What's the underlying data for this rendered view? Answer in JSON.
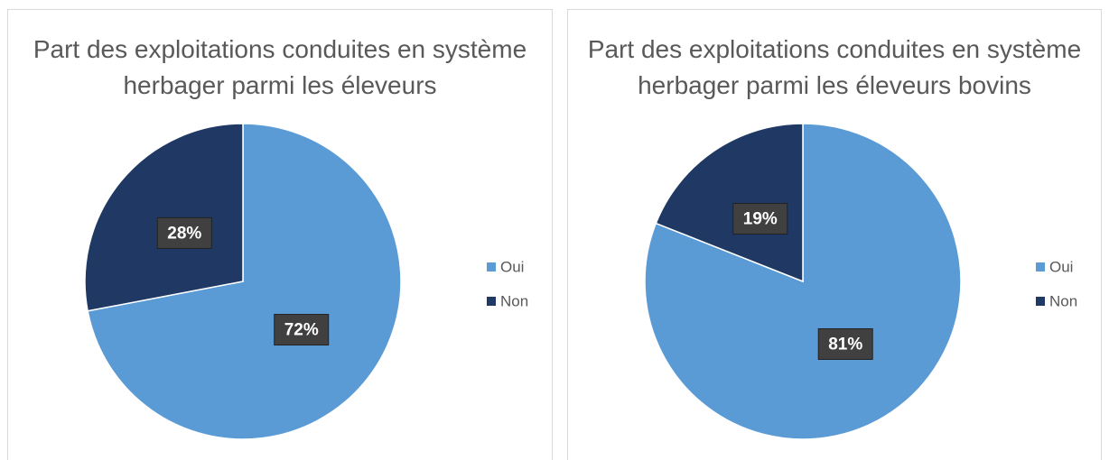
{
  "chart_data": [
    {
      "type": "pie",
      "title": "Part des exploitations conduites en système herbager parmi les éleveurs",
      "categories": [
        "Oui",
        "Non"
      ],
      "values": [
        72,
        28
      ],
      "value_labels": [
        "72%",
        "28%"
      ],
      "colors": [
        "#5b9bd5",
        "#1f3864"
      ],
      "legend": "right"
    },
    {
      "type": "pie",
      "title": "Part des exploitations conduites en système herbager parmi les éleveurs bovins",
      "categories": [
        "Oui",
        "Non"
      ],
      "values": [
        81,
        19
      ],
      "value_labels": [
        "81%",
        "19%"
      ],
      "colors": [
        "#5b9bd5",
        "#1f3864"
      ],
      "legend": "right"
    }
  ]
}
